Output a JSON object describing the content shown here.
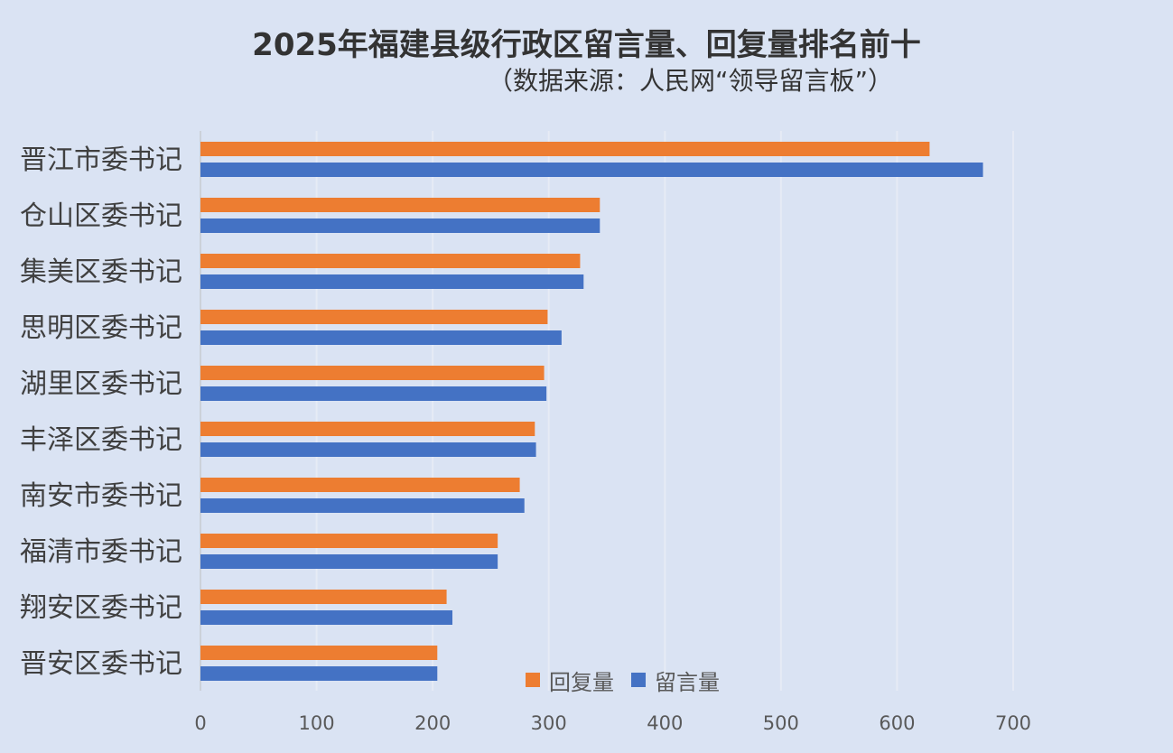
{
  "chart_data": {
    "type": "bar",
    "orientation": "horizontal",
    "title": "2025年福建县级行政区留言量、回复量排名前十",
    "subtitle": "（数据来源：人民网“领导留言板”）",
    "categories": [
      "晋江市委书记",
      "仓山区委书记",
      "集美区委书记",
      "思明区委书记",
      "湖里区委书记",
      "丰泽区委书记",
      "南安市委书记",
      "福清市委书记",
      "翔安区委书记",
      "晋安区委书记"
    ],
    "series": [
      {
        "name": "回复量",
        "color": "#ed7d31",
        "values": [
          628,
          344,
          327,
          299,
          296,
          288,
          275,
          256,
          212,
          204
        ]
      },
      {
        "name": "留言量",
        "color": "#4472c4",
        "values": [
          674,
          344,
          330,
          311,
          298,
          289,
          279,
          256,
          217,
          204
        ]
      }
    ],
    "xlim": [
      0,
      700
    ],
    "xticks": [
      "0",
      "100",
      "200",
      "300",
      "400",
      "500",
      "600",
      "700"
    ],
    "grid": true,
    "legend": "bottom"
  }
}
